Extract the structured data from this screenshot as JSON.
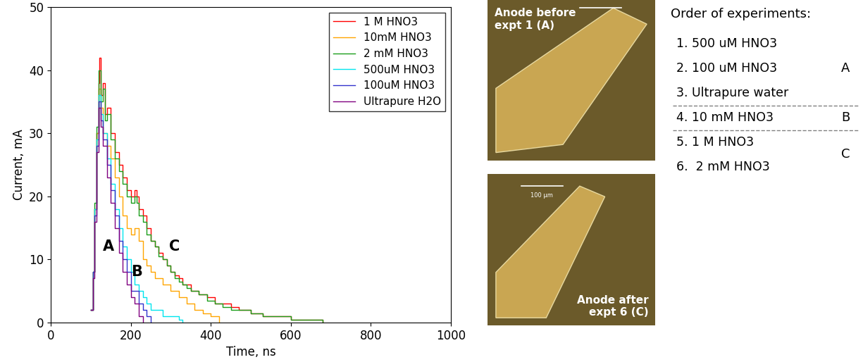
{
  "chart_data": {
    "type": "line",
    "x_label": "Time, ns",
    "y_label": "Current, mA",
    "xlim": [
      0,
      1000
    ],
    "xticks": [
      0,
      200,
      400,
      600,
      800,
      1000
    ],
    "ylim": [
      0,
      50
    ],
    "yticks": [
      0,
      10,
      20,
      30,
      40,
      50
    ],
    "grid": false,
    "legend": "upper right",
    "series": [
      {
        "name": "1 M HNO3",
        "color": "#ff0000",
        "x": [
          100,
          105,
          110,
          115,
          120,
          122,
          125,
          130,
          135,
          140,
          150,
          160,
          170,
          180,
          190,
          200,
          210,
          215,
          220,
          230,
          240,
          250,
          260,
          270,
          280,
          290,
          300,
          310,
          320,
          330,
          340,
          350,
          370,
          390,
          410,
          430,
          450,
          470,
          500,
          530,
          560,
          600,
          640,
          680
        ],
        "values": [
          2,
          8,
          18,
          30,
          38,
          42,
          36,
          38,
          33,
          34,
          30,
          27,
          25,
          23,
          21,
          20,
          21,
          20,
          18,
          17,
          15,
          13,
          12,
          11,
          10,
          9,
          8,
          7.5,
          7,
          6,
          6,
          5,
          4.5,
          4,
          3,
          3,
          2.5,
          2,
          1.5,
          1,
          1,
          0.5,
          0.5,
          0
        ]
      },
      {
        "name": "10mM HNO3",
        "color": "#ffa500",
        "x": [
          100,
          105,
          110,
          115,
          120,
          125,
          130,
          140,
          150,
          160,
          170,
          180,
          190,
          200,
          210,
          220,
          230,
          240,
          250,
          260,
          280,
          300,
          320,
          340,
          360,
          380,
          400,
          420
        ],
        "values": [
          2,
          8,
          18,
          30,
          37,
          34,
          30,
          28,
          26,
          23,
          20,
          17,
          15,
          14,
          15,
          13,
          10,
          9,
          8,
          7,
          6,
          5,
          4,
          3,
          2,
          1.5,
          1,
          0
        ]
      },
      {
        "name": "2 mM HNO3",
        "color": "#1a9e1a",
        "x": [
          100,
          105,
          110,
          115,
          120,
          122,
          125,
          130,
          135,
          140,
          150,
          160,
          170,
          180,
          190,
          200,
          210,
          215,
          220,
          230,
          240,
          250,
          260,
          270,
          280,
          290,
          300,
          310,
          320,
          330,
          340,
          350,
          370,
          390,
          410,
          430,
          450,
          470,
          500,
          530,
          560,
          600,
          640,
          680
        ],
        "values": [
          2,
          8,
          19,
          31,
          40,
          40,
          35,
          37,
          32,
          33,
          29,
          26,
          24,
          22,
          20,
          19,
          20,
          19,
          17,
          16,
          14,
          13,
          12,
          10.5,
          10,
          9,
          8,
          7,
          6.5,
          6,
          5.5,
          5,
          4.5,
          3.5,
          3,
          2.5,
          2,
          2,
          1.5,
          1,
          1,
          0.5,
          0.5,
          0
        ]
      },
      {
        "name": "500uM HNO3",
        "color": "#00e5ee",
        "x": [
          100,
          105,
          110,
          115,
          120,
          125,
          130,
          140,
          150,
          160,
          170,
          180,
          190,
          200,
          210,
          220,
          230,
          240,
          250,
          260,
          280,
          300,
          320,
          330
        ],
        "values": [
          2,
          8,
          18,
          29,
          36,
          33,
          30,
          26,
          22,
          18,
          15,
          12,
          10,
          8,
          6,
          5,
          4,
          3,
          2,
          2,
          1,
          1,
          0.5,
          0
        ]
      },
      {
        "name": "100uM HNO3",
        "color": "#3333cc",
        "x": [
          100,
          105,
          110,
          115,
          120,
          125,
          130,
          140,
          150,
          160,
          170,
          180,
          190,
          200,
          210,
          220,
          230,
          240,
          250
        ],
        "values": [
          2,
          8,
          17,
          28,
          35,
          32,
          29,
          25,
          21,
          17,
          13,
          10,
          8,
          5,
          5,
          3,
          2,
          1,
          0
        ]
      },
      {
        "name": "Ultrapure H2O",
        "color": "#800080",
        "x": [
          100,
          105,
          110,
          115,
          120,
          125,
          130,
          140,
          150,
          160,
          170,
          180,
          190,
          200,
          210,
          220,
          230
        ],
        "values": [
          2,
          7,
          16,
          27,
          34,
          31,
          28,
          23,
          19,
          15,
          11,
          8,
          6,
          4,
          3,
          1,
          0
        ]
      }
    ],
    "annotations": [
      {
        "text": "A",
        "x": 145,
        "y": 12
      },
      {
        "text": "B",
        "x": 215,
        "y": 8
      },
      {
        "text": "C",
        "x": 310,
        "y": 12
      }
    ]
  },
  "photos": [
    {
      "label": "Anode before\nexpt 1 (A)"
    },
    {
      "label": "Anode after\nexpt 6 (C)",
      "scale_label": "100 µm"
    }
  ],
  "experiment_order": {
    "title": "Order of experiments:",
    "groups": [
      {
        "label": "A",
        "items": [
          "1. 500 uM HNO3",
          "2. 100 uM HNO3",
          "3. Ultrapure water"
        ]
      },
      {
        "label": "B",
        "items": [
          "4. 10 mM HNO3"
        ]
      },
      {
        "label": "C",
        "items": [
          "5. 1 M HNO3",
          "6.  2 mM HNO3"
        ]
      }
    ]
  }
}
